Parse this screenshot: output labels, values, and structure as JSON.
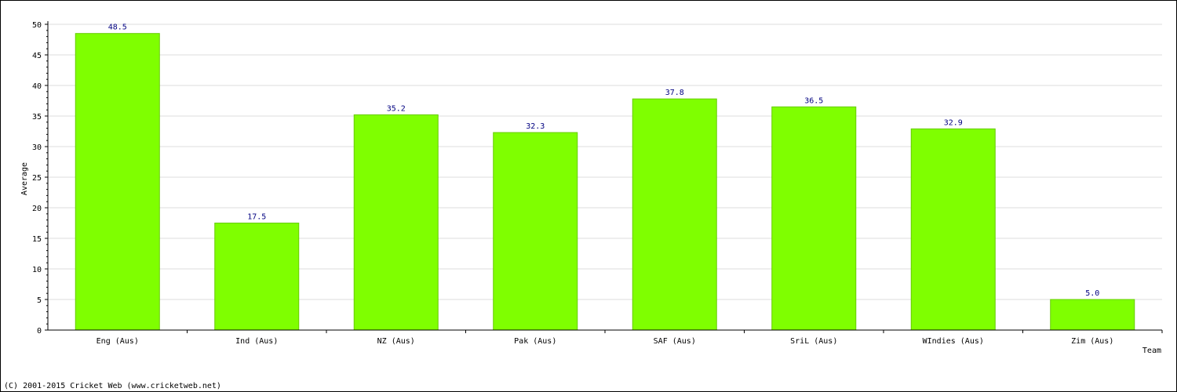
{
  "chart_data": {
    "type": "bar",
    "title": "",
    "xlabel": "Team",
    "ylabel": "Average",
    "ylim": [
      0,
      50
    ],
    "yticks": [
      0,
      5,
      10,
      15,
      20,
      25,
      30,
      35,
      40,
      45,
      50
    ],
    "grid": true,
    "categories": [
      "Eng (Aus)",
      "Ind (Aus)",
      "NZ (Aus)",
      "Pak (Aus)",
      "SAF (Aus)",
      "SriL (Aus)",
      "WIndies (Aus)",
      "Zim (Aus)"
    ],
    "values": [
      48.5,
      17.5,
      35.2,
      32.3,
      37.8,
      36.5,
      32.9,
      5.0
    ],
    "data_labels": [
      "48.5",
      "17.5",
      "35.2",
      "32.3",
      "37.8",
      "36.5",
      "32.9",
      "5.0"
    ],
    "colors": {
      "bar": "#7fff00",
      "bar_edge": "#66cc00",
      "label": "#000080",
      "grid": "#dddddd",
      "axis": "#000000"
    }
  },
  "footer": {
    "copyright": "(C) 2001-2015 Cricket Web (www.cricketweb.net)"
  }
}
